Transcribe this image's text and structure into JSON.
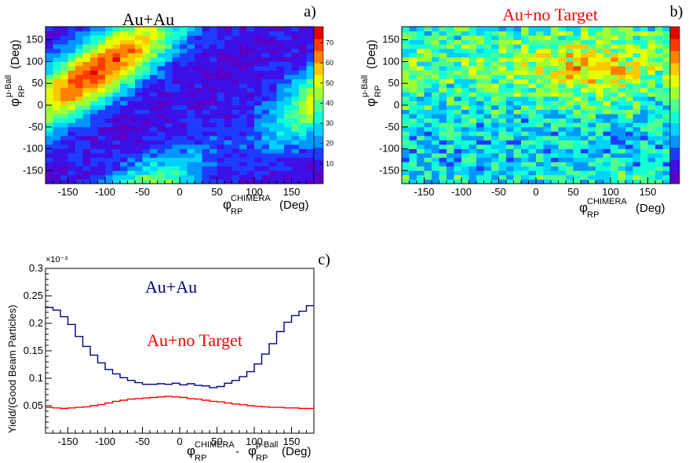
{
  "chart_data": [
    {
      "type": "heatmap",
      "panel_label": "a)",
      "title": "Au+Au",
      "title_color": "#000080",
      "x_label": {
        "main": "φ",
        "sub": "RP",
        "sup": "CHIMERA",
        "unit": "(Deg)"
      },
      "y_label": {
        "main": "φ",
        "sub": "RP",
        "sup": "μ-Ball",
        "unit": "(Deg)"
      },
      "xlim": [
        -180,
        180
      ],
      "ylim": [
        -180,
        180
      ],
      "x_ticks": [
        "-150",
        "-100",
        "-50",
        "0",
        "50",
        "100",
        "150"
      ],
      "y_ticks": [
        "-150",
        "-100",
        "-50",
        "0",
        "50",
        "100",
        "150"
      ],
      "bins": [
        36,
        36
      ],
      "z_range": [
        0,
        78
      ],
      "z_ticks": [
        "10",
        "20",
        "30",
        "40",
        "50",
        "60",
        "70"
      ],
      "description_of_structure": "Correlation ridge: maximum near (x=-150..-80, y=50..100), band follows y ≈ x + 190 (wrapped), minimum near x≈-80, y≈-100",
      "ridge": {
        "offset_deg": 190,
        "width_deg": 55,
        "peak": 62,
        "baseline": 8
      }
    },
    {
      "type": "heatmap",
      "panel_label": "b)",
      "title": "Au+no Target",
      "title_color": "#ff0000",
      "x_label": {
        "main": "φ",
        "sub": "RP",
        "sup": "CHIMERA",
        "unit": "(Deg)"
      },
      "y_label": {
        "main": "φ",
        "sub": "RP",
        "sup": "μ-Ball",
        "unit": "(Deg)"
      },
      "xlim": [
        -180,
        180
      ],
      "ylim": [
        -180,
        180
      ],
      "x_ticks": [
        "-150",
        "-100",
        "-50",
        "0",
        "50",
        "100",
        "150"
      ],
      "y_ticks": [
        "-150",
        "-100",
        "-50",
        "0",
        "50",
        "100",
        "150"
      ],
      "bins": [
        36,
        36
      ],
      "description_of_structure": "Mostly flat noisy distribution, mild excess near (x=50..100, y=50..110)"
    },
    {
      "type": "line",
      "panel_label": "c)",
      "y_exponent_label": "×10⁻³",
      "x_label": {
        "a_main": "φ",
        "a_sub": "RP",
        "a_sup": "CHIMERA",
        "sep": " - ",
        "b_main": "φ",
        "b_sub": "RP",
        "b_sup": "μ-Ball",
        "unit": "(Deg)"
      },
      "ylabel": "Yield/(Good Beam Particles)",
      "xlim": [
        -180,
        180
      ],
      "ylim": [
        0,
        0.3
      ],
      "x_ticks": [
        "-150",
        "-100",
        "-50",
        "0",
        "50",
        "100",
        "150"
      ],
      "y_ticks": [
        "0.05",
        "0.1",
        "0.15",
        "0.2",
        "0.25",
        "0.3"
      ],
      "step_histogram": true,
      "series": [
        {
          "name": "Au+Au",
          "color": "#000080",
          "x": [
            -175,
            -165,
            -155,
            -145,
            -135,
            -125,
            -115,
            -105,
            -95,
            -85,
            -75,
            -65,
            -55,
            -45,
            -35,
            -25,
            -15,
            -5,
            5,
            15,
            25,
            35,
            45,
            55,
            65,
            75,
            85,
            95,
            105,
            115,
            125,
            135,
            145,
            155,
            165,
            175
          ],
          "values": [
            0.229,
            0.224,
            0.212,
            0.198,
            0.176,
            0.158,
            0.142,
            0.128,
            0.116,
            0.108,
            0.101,
            0.096,
            0.092,
            0.089,
            0.089,
            0.09,
            0.089,
            0.091,
            0.088,
            0.09,
            0.087,
            0.086,
            0.083,
            0.085,
            0.091,
            0.096,
            0.103,
            0.112,
            0.126,
            0.144,
            0.163,
            0.185,
            0.202,
            0.214,
            0.222,
            0.232
          ]
        },
        {
          "name": "Au+no Target",
          "color": "#ff0000",
          "x": [
            -175,
            -165,
            -155,
            -145,
            -135,
            -125,
            -115,
            -105,
            -95,
            -85,
            -75,
            -65,
            -55,
            -45,
            -35,
            -25,
            -15,
            -5,
            5,
            15,
            25,
            35,
            45,
            55,
            65,
            75,
            85,
            95,
            105,
            115,
            125,
            135,
            145,
            155,
            165,
            175
          ],
          "values": [
            0.047,
            0.046,
            0.045,
            0.046,
            0.047,
            0.048,
            0.05,
            0.052,
            0.055,
            0.058,
            0.06,
            0.062,
            0.063,
            0.064,
            0.065,
            0.066,
            0.067,
            0.066,
            0.065,
            0.063,
            0.062,
            0.06,
            0.058,
            0.057,
            0.055,
            0.053,
            0.052,
            0.05,
            0.049,
            0.048,
            0.047,
            0.047,
            0.046,
            0.046,
            0.045,
            0.045
          ]
        }
      ]
    }
  ],
  "palette": [
    "#5a00c8",
    "#3c10e6",
    "#1e3cff",
    "#0096ff",
    "#00d2ff",
    "#14ffd2",
    "#50ff8c",
    "#a0ff32",
    "#e6ff00",
    "#ffc800",
    "#ff8200",
    "#ff3c00",
    "#e60000"
  ]
}
